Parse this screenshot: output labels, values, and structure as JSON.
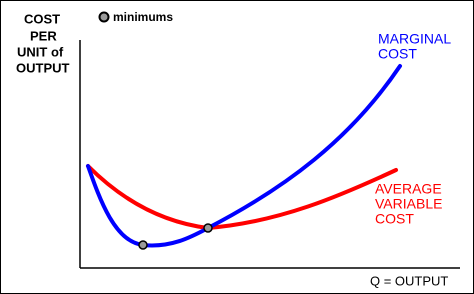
{
  "y_axis_label": [
    "COST",
    "PER",
    "UNIT of",
    "OUTPUT"
  ],
  "legend": "minimums",
  "x_axis_label": "Q = OUTPUT",
  "curves": [
    {
      "label": [
        "MARGINAL",
        "COST"
      ]
    },
    {
      "label": [
        "AVERAGE",
        "VARIABLE",
        "COST"
      ]
    }
  ]
}
